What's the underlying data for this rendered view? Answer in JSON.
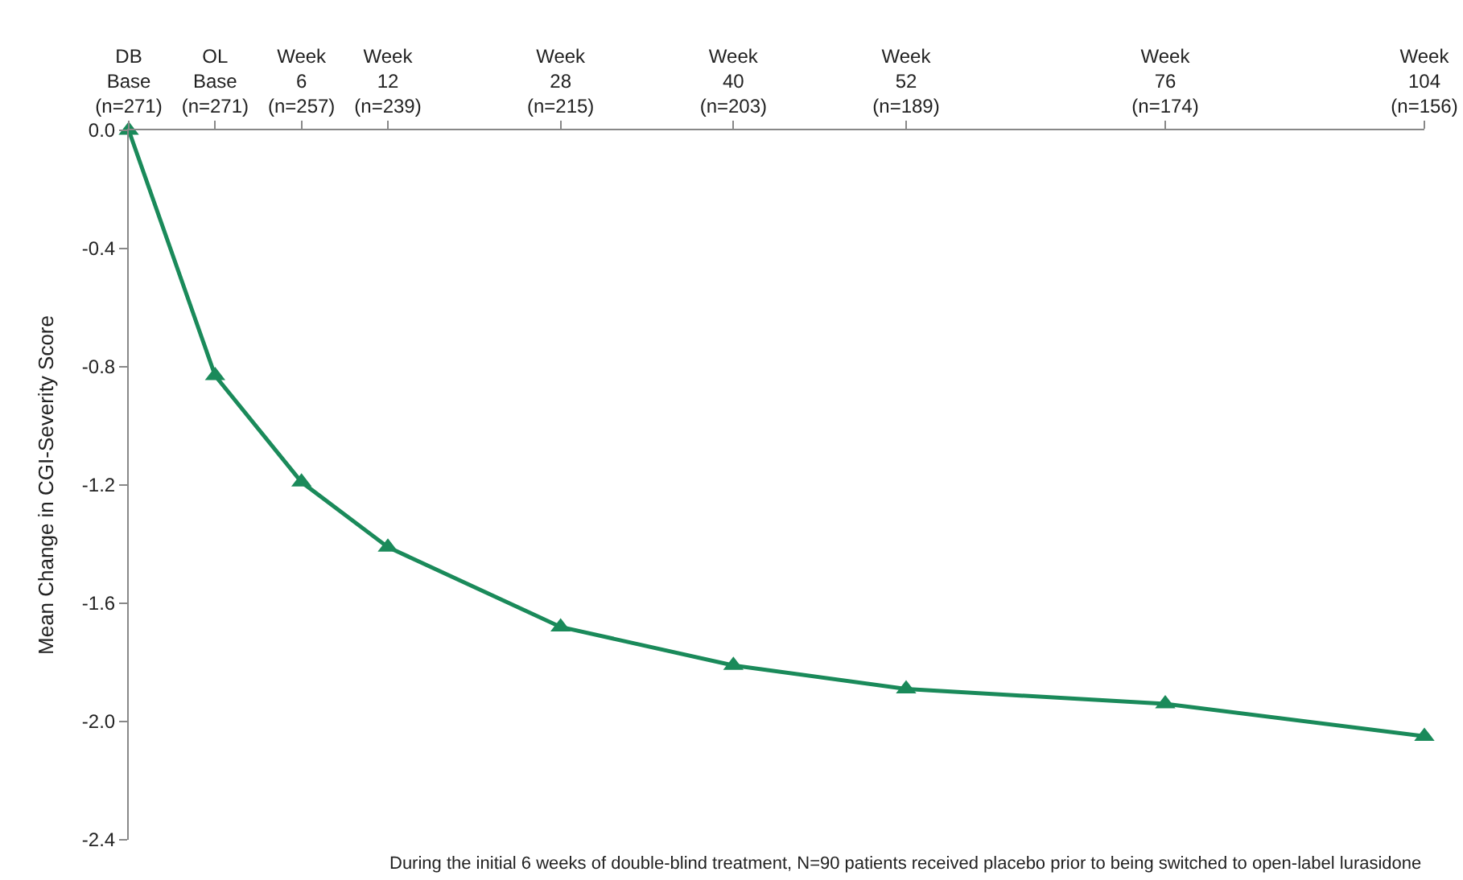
{
  "chart_data": {
    "type": "line",
    "ylabel": "Mean Change in CGI-Severity Score",
    "categories": [
      "DB\nBase\n(n=271)",
      "OL\nBase\n(n=271)",
      "Week\n6\n(n=257)",
      "Week\n12\n(n=239)",
      null,
      "Week\n28\n(n=215)",
      null,
      "Week\n40\n(n=203)",
      null,
      "Week\n52\n(n=189)",
      null,
      null,
      "Week\n76\n(n=174)",
      null,
      null,
      "Week\n104\n(n=156)"
    ],
    "series": [
      {
        "color": "#1a8a5a",
        "values": [
          0,
          -0.83,
          -1.19,
          -1.41,
          null,
          -1.68,
          null,
          -1.81,
          null,
          -1.89,
          null,
          null,
          -1.94,
          null,
          null,
          -2.05
        ]
      }
    ],
    "ylim": [
      -2.4,
      0
    ],
    "yticks": [
      {
        "value": 0,
        "label": "0.0"
      },
      {
        "value": -0.4,
        "label": "-0.4"
      },
      {
        "value": -0.8,
        "label": "-0.8"
      },
      {
        "value": -1.2,
        "label": "-1.2"
      },
      {
        "value": -1.6,
        "label": "-1.6"
      },
      {
        "value": -2,
        "label": "-2.0"
      },
      {
        "value": -2.4,
        "label": "-2.4"
      }
    ],
    "grid": false,
    "marker": "triangle",
    "line_style": "solid",
    "annotations": [
      "During the initial 6 weeks of double-blind treatment, N=90 patients received placebo prior to being switched to open-label lurasidone"
    ]
  }
}
